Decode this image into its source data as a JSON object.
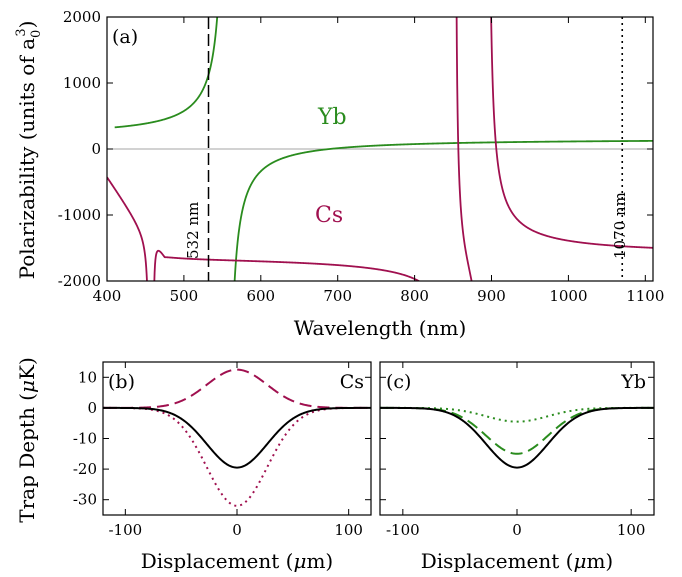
{
  "chart_data": [
    {
      "type": "line",
      "panel": "(a)",
      "xlabel": "Wavelength (nm)",
      "ylabel": "Polarizability (units of a",
      "ylabel_sub": "0",
      "ylabel_sup": "3",
      "ylabel_end": ")",
      "xlim": [
        400,
        1110
      ],
      "ylim": [
        -2000,
        2000
      ],
      "xticks": [
        400,
        500,
        600,
        700,
        800,
        900,
        1000,
        1100
      ],
      "yticks": [
        -2000,
        -1000,
        0,
        1000,
        2000
      ],
      "grid": false,
      "series": [
        {
          "name": "Yb",
          "color": "#2a8c1e",
          "resonance_nm": 555.6,
          "model": "a/(r^2-x^2)+b",
          "a": 25000000.0,
          "b": 150,
          "x_start": 410
        },
        {
          "name": "Cs",
          "color": "#a0104f",
          "resonances_nm": [
            455.6,
            459.3,
            852.3,
            894.6
          ]
        }
      ],
      "vlines": [
        {
          "x": 532,
          "style": "dashed",
          "label": "532 nm"
        },
        {
          "x": 1070,
          "style": "dotted",
          "label": "1070 nm"
        }
      ]
    },
    {
      "type": "line",
      "panel": "(b)",
      "title": "Cs",
      "xlabel": "Displacement (",
      "xlabel_mu": "μ",
      "xlabel_end": "m)",
      "ylabel": "Trap Depth (",
      "ylabel_mu": "μ",
      "ylabel_end": "K)",
      "xlim": [
        -120,
        120
      ],
      "ylim": [
        -35,
        15
      ],
      "xticks": [
        -100,
        0,
        100
      ],
      "yticks": [
        -30,
        -20,
        -10,
        0,
        10
      ],
      "series": [
        {
          "style": "dashed",
          "color": "#a0104f",
          "amplitude": 12.5,
          "sigma": 27
        },
        {
          "style": "dotted",
          "color": "#a0104f",
          "amplitude": -32,
          "sigma": 27
        },
        {
          "style": "solid",
          "color": "#000000",
          "amplitude": -19.5,
          "sigma": 27
        }
      ]
    },
    {
      "type": "line",
      "panel": "(c)",
      "title": "Yb",
      "xlabel": "Displacement (",
      "xlabel_mu": "μ",
      "xlabel_end": "m)",
      "xlim": [
        -120,
        120
      ],
      "ylim": [
        -35,
        15
      ],
      "xticks": [
        -100,
        0,
        100
      ],
      "yticks": [
        -30,
        -20,
        -10,
        0,
        10
      ],
      "series": [
        {
          "style": "dotted",
          "color": "#2a8c1e",
          "amplitude": -4.5,
          "sigma": 27
        },
        {
          "style": "dashed",
          "color": "#2a8c1e",
          "amplitude": -15,
          "sigma": 27
        },
        {
          "style": "solid",
          "color": "#000000",
          "amplitude": -19.5,
          "sigma": 27
        }
      ]
    }
  ]
}
